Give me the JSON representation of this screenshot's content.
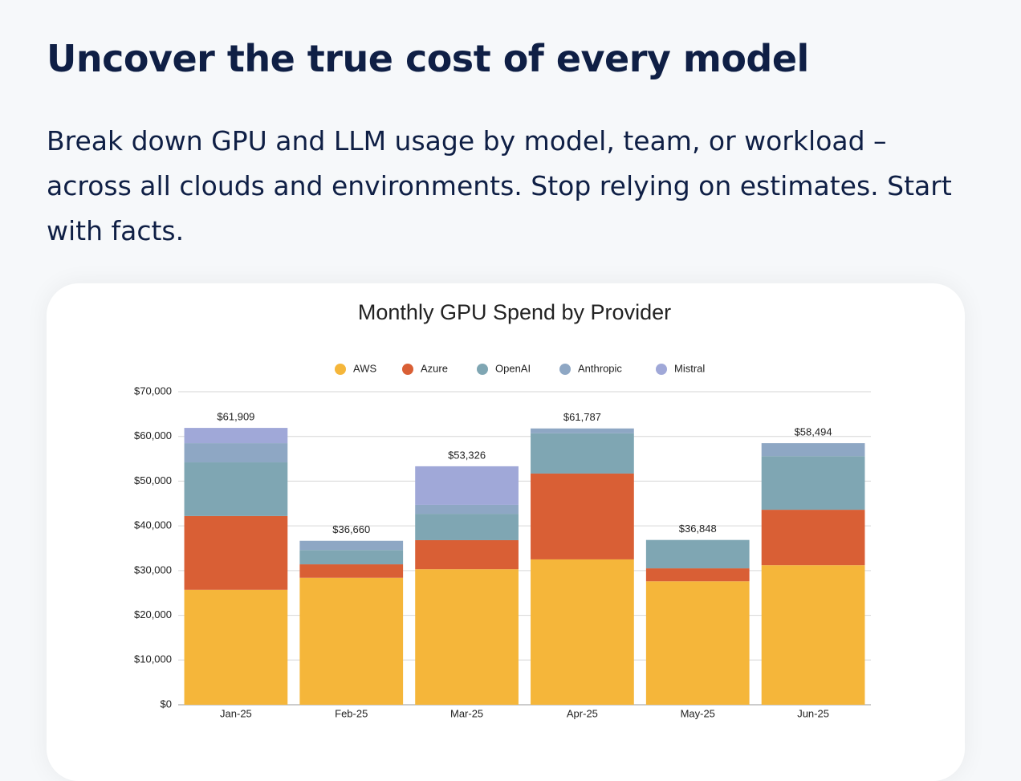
{
  "header": {
    "title": "Uncover the true cost of every model",
    "description": "Break down GPU and LLM usage by model, team, or workload – across all clouds and environments. Stop relying on estimates. Start with facts."
  },
  "chart_data": {
    "type": "stacked-bar",
    "title": "Monthly GPU Spend by Provider",
    "categories": [
      "Jan-25",
      "Feb-25",
      "Mar-25",
      "Apr-25",
      "May-25",
      "Jun-25"
    ],
    "series": [
      {
        "name": "AWS",
        "color": "#f5b63a",
        "values": [
          25700,
          28400,
          30300,
          32500,
          27600,
          31200
        ]
      },
      {
        "name": "Azure",
        "color": "#d95f35",
        "values": [
          16500,
          3000,
          6500,
          19200,
          2900,
          12400
        ]
      },
      {
        "name": "OpenAI",
        "color": "#7fa6b3",
        "values": [
          12000,
          3200,
          5900,
          9000,
          6348,
          12000
        ]
      },
      {
        "name": "Anthropic",
        "color": "#8ea7c4",
        "values": [
          4300,
          2060,
          2000,
          1087,
          0,
          2894
        ]
      },
      {
        "name": "Mistral",
        "color": "#a0a8d8",
        "values": [
          3409,
          0,
          8626,
          0,
          0,
          0
        ]
      }
    ],
    "totals": {
      "values": [
        61909,
        36660,
        53326,
        61787,
        36848,
        58494
      ],
      "value_labels": [
        "$61,909",
        "$36,660",
        "$53,326",
        "$61,787",
        "$36,848",
        "$58,494"
      ]
    },
    "ylim": [
      0,
      70000
    ],
    "yticks": [
      {
        "value": 0,
        "label": "$0"
      },
      {
        "value": 10000,
        "label": "$10,000"
      },
      {
        "value": 20000,
        "label": "$20,000"
      },
      {
        "value": 30000,
        "label": "$30,000"
      },
      {
        "value": 40000,
        "label": "$40,000"
      },
      {
        "value": 50000,
        "label": "$50,000"
      },
      {
        "value": 60000,
        "label": "$60,000"
      },
      {
        "value": 70000,
        "label": "$70,000"
      }
    ],
    "grid": true,
    "legend": "top"
  }
}
